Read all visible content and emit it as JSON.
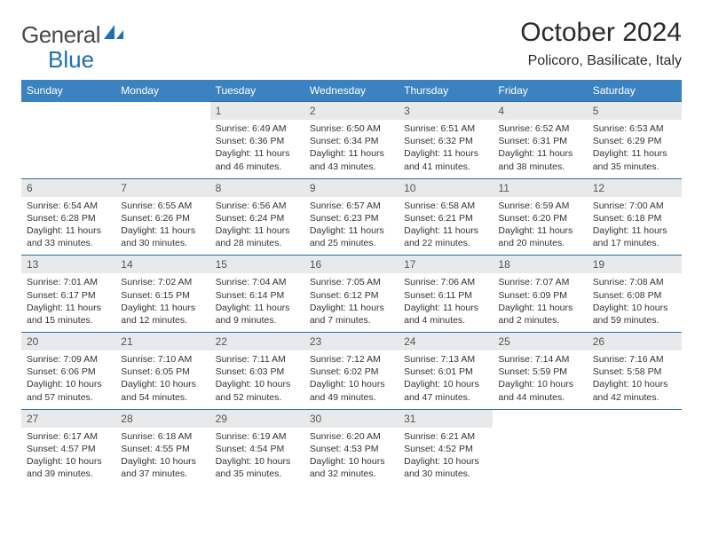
{
  "brand": {
    "part1": "General",
    "part2": "Blue"
  },
  "colors": {
    "headerBar": "#3b83c0",
    "rowDivider": "#2b6ca3",
    "dayNumBg": "#e8e9ea",
    "logoBlue": "#1f6fb2",
    "text": "#2b2b2b"
  },
  "title": "October 2024",
  "location": "Policoro, Basilicate, Italy",
  "weekdays": [
    "Sunday",
    "Monday",
    "Tuesday",
    "Wednesday",
    "Thursday",
    "Friday",
    "Saturday"
  ],
  "layout": {
    "startOffset": 2,
    "daysInMonth": 31
  },
  "days": {
    "1": {
      "sunrise": "6:49 AM",
      "sunset": "6:36 PM",
      "daylight": "11 hours and 46 minutes."
    },
    "2": {
      "sunrise": "6:50 AM",
      "sunset": "6:34 PM",
      "daylight": "11 hours and 43 minutes."
    },
    "3": {
      "sunrise": "6:51 AM",
      "sunset": "6:32 PM",
      "daylight": "11 hours and 41 minutes."
    },
    "4": {
      "sunrise": "6:52 AM",
      "sunset": "6:31 PM",
      "daylight": "11 hours and 38 minutes."
    },
    "5": {
      "sunrise": "6:53 AM",
      "sunset": "6:29 PM",
      "daylight": "11 hours and 35 minutes."
    },
    "6": {
      "sunrise": "6:54 AM",
      "sunset": "6:28 PM",
      "daylight": "11 hours and 33 minutes."
    },
    "7": {
      "sunrise": "6:55 AM",
      "sunset": "6:26 PM",
      "daylight": "11 hours and 30 minutes."
    },
    "8": {
      "sunrise": "6:56 AM",
      "sunset": "6:24 PM",
      "daylight": "11 hours and 28 minutes."
    },
    "9": {
      "sunrise": "6:57 AM",
      "sunset": "6:23 PM",
      "daylight": "11 hours and 25 minutes."
    },
    "10": {
      "sunrise": "6:58 AM",
      "sunset": "6:21 PM",
      "daylight": "11 hours and 22 minutes."
    },
    "11": {
      "sunrise": "6:59 AM",
      "sunset": "6:20 PM",
      "daylight": "11 hours and 20 minutes."
    },
    "12": {
      "sunrise": "7:00 AM",
      "sunset": "6:18 PM",
      "daylight": "11 hours and 17 minutes."
    },
    "13": {
      "sunrise": "7:01 AM",
      "sunset": "6:17 PM",
      "daylight": "11 hours and 15 minutes."
    },
    "14": {
      "sunrise": "7:02 AM",
      "sunset": "6:15 PM",
      "daylight": "11 hours and 12 minutes."
    },
    "15": {
      "sunrise": "7:04 AM",
      "sunset": "6:14 PM",
      "daylight": "11 hours and 9 minutes."
    },
    "16": {
      "sunrise": "7:05 AM",
      "sunset": "6:12 PM",
      "daylight": "11 hours and 7 minutes."
    },
    "17": {
      "sunrise": "7:06 AM",
      "sunset": "6:11 PM",
      "daylight": "11 hours and 4 minutes."
    },
    "18": {
      "sunrise": "7:07 AM",
      "sunset": "6:09 PM",
      "daylight": "11 hours and 2 minutes."
    },
    "19": {
      "sunrise": "7:08 AM",
      "sunset": "6:08 PM",
      "daylight": "10 hours and 59 minutes."
    },
    "20": {
      "sunrise": "7:09 AM",
      "sunset": "6:06 PM",
      "daylight": "10 hours and 57 minutes."
    },
    "21": {
      "sunrise": "7:10 AM",
      "sunset": "6:05 PM",
      "daylight": "10 hours and 54 minutes."
    },
    "22": {
      "sunrise": "7:11 AM",
      "sunset": "6:03 PM",
      "daylight": "10 hours and 52 minutes."
    },
    "23": {
      "sunrise": "7:12 AM",
      "sunset": "6:02 PM",
      "daylight": "10 hours and 49 minutes."
    },
    "24": {
      "sunrise": "7:13 AM",
      "sunset": "6:01 PM",
      "daylight": "10 hours and 47 minutes."
    },
    "25": {
      "sunrise": "7:14 AM",
      "sunset": "5:59 PM",
      "daylight": "10 hours and 44 minutes."
    },
    "26": {
      "sunrise": "7:16 AM",
      "sunset": "5:58 PM",
      "daylight": "10 hours and 42 minutes."
    },
    "27": {
      "sunrise": "6:17 AM",
      "sunset": "4:57 PM",
      "daylight": "10 hours and 39 minutes."
    },
    "28": {
      "sunrise": "6:18 AM",
      "sunset": "4:55 PM",
      "daylight": "10 hours and 37 minutes."
    },
    "29": {
      "sunrise": "6:19 AM",
      "sunset": "4:54 PM",
      "daylight": "10 hours and 35 minutes."
    },
    "30": {
      "sunrise": "6:20 AM",
      "sunset": "4:53 PM",
      "daylight": "10 hours and 32 minutes."
    },
    "31": {
      "sunrise": "6:21 AM",
      "sunset": "4:52 PM",
      "daylight": "10 hours and 30 minutes."
    }
  },
  "labels": {
    "sunrise": "Sunrise: ",
    "sunset": "Sunset: ",
    "daylight": "Daylight: "
  }
}
